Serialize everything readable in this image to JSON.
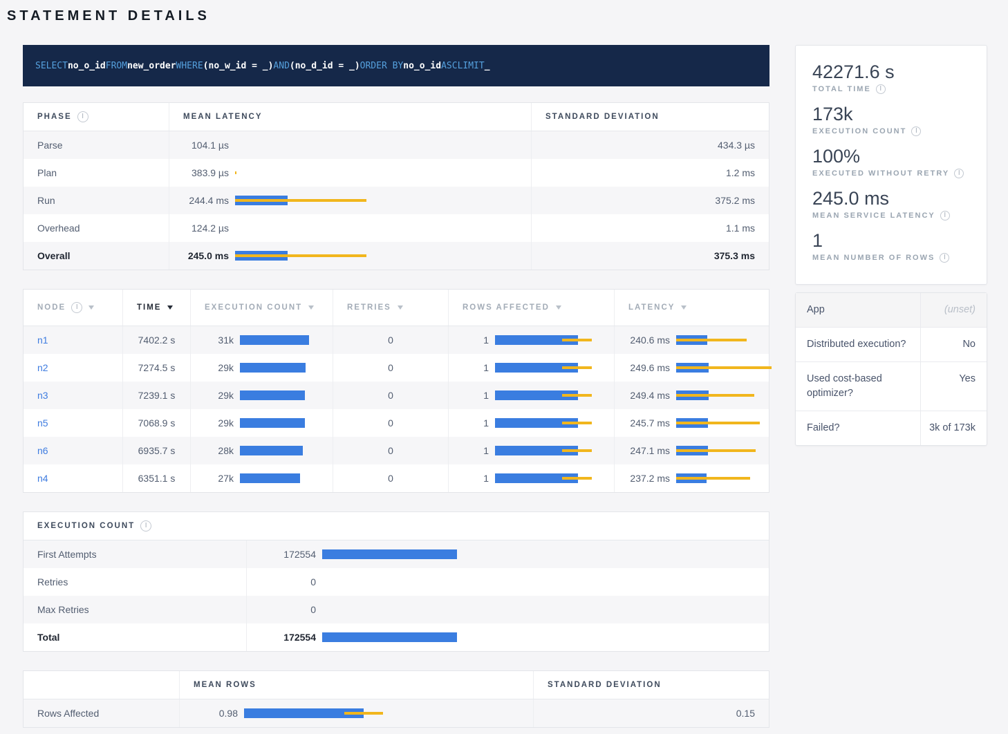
{
  "page_title": "STATEMENT DETAILS",
  "colors": {
    "bar_blue": "#3a7de0",
    "bar_yellow": "#f1b61d",
    "banner_bg": "#152849",
    "sql_keyword": "#55a0dd",
    "link": "#3e7ce0"
  },
  "sql_tokens": [
    {
      "text": "SELECT",
      "kw": true
    },
    {
      "text": "no_o_id",
      "kw": false
    },
    {
      "text": "FROM",
      "kw": true
    },
    {
      "text": "new_order",
      "kw": false
    },
    {
      "text": "WHERE",
      "kw": true
    },
    {
      "text": "(no_w_id = _)",
      "kw": false
    },
    {
      "text": "AND",
      "kw": true
    },
    {
      "text": "(no_d_id = _)",
      "kw": false
    },
    {
      "text": "ORDER BY",
      "kw": true
    },
    {
      "text": "no_o_id",
      "kw": false
    },
    {
      "text": "ASC",
      "kw": true
    },
    {
      "text": "LIMIT",
      "kw": true
    },
    {
      "text": "_",
      "kw": false
    }
  ],
  "phase_table": {
    "headers": {
      "phase": "Phase",
      "mean": "Mean Latency",
      "std": "Standard Deviation"
    },
    "rows": [
      {
        "phase": "Parse",
        "mean": "104.1 µs",
        "std": "434.3 µs",
        "bar": 0,
        "line": [
          0,
          0
        ],
        "bold": false
      },
      {
        "phase": "Plan",
        "mean": "383.9 µs",
        "std": "1.2 ms",
        "bar": 0,
        "line": [
          0,
          2
        ],
        "bold": false
      },
      {
        "phase": "Run",
        "mean": "244.4 ms",
        "std": "375.2 ms",
        "bar": 76,
        "line": [
          0,
          190
        ],
        "bold": false
      },
      {
        "phase": "Overhead",
        "mean": "124.2 µs",
        "std": "1.1 ms",
        "bar": 0,
        "line": [
          0,
          0
        ],
        "bold": false
      },
      {
        "phase": "Overall",
        "mean": "245.0 ms",
        "std": "375.3 ms",
        "bar": 76,
        "line": [
          0,
          190
        ],
        "bold": true
      }
    ]
  },
  "node_table": {
    "headers": [
      {
        "label": "Node",
        "info": true,
        "active": false
      },
      {
        "label": "Time",
        "info": false,
        "active": true
      },
      {
        "label": "Execution Count",
        "info": false,
        "active": false
      },
      {
        "label": "Retries",
        "info": false,
        "active": false
      },
      {
        "label": "Rows Affected",
        "info": false,
        "active": false
      },
      {
        "label": "Latency",
        "info": false,
        "active": false
      }
    ],
    "rows": [
      {
        "node": "n1",
        "time": "7402.2 s",
        "exec": "31k",
        "exec_bar": 100,
        "retries": "0",
        "rows": "1",
        "rows_bar": 120,
        "rows_line": [
          97,
          140
        ],
        "latency": "240.6 ms",
        "lat_bar": 45,
        "lat_line": [
          0,
          102
        ]
      },
      {
        "node": "n2",
        "time": "7274.5 s",
        "exec": "29k",
        "exec_bar": 95,
        "retries": "0",
        "rows": "1",
        "rows_bar": 120,
        "rows_line": [
          97,
          140
        ],
        "latency": "249.6 ms",
        "lat_bar": 47,
        "lat_line": [
          0,
          138
        ]
      },
      {
        "node": "n3",
        "time": "7239.1 s",
        "exec": "29k",
        "exec_bar": 94,
        "retries": "0",
        "rows": "1",
        "rows_bar": 120,
        "rows_line": [
          97,
          140
        ],
        "latency": "249.4 ms",
        "lat_bar": 47,
        "lat_line": [
          0,
          113
        ]
      },
      {
        "node": "n5",
        "time": "7068.9 s",
        "exec": "29k",
        "exec_bar": 94,
        "retries": "0",
        "rows": "1",
        "rows_bar": 120,
        "rows_line": [
          97,
          140
        ],
        "latency": "245.7 ms",
        "lat_bar": 46,
        "lat_line": [
          0,
          121
        ]
      },
      {
        "node": "n6",
        "time": "6935.7 s",
        "exec": "28k",
        "exec_bar": 91,
        "retries": "0",
        "rows": "1",
        "rows_bar": 120,
        "rows_line": [
          97,
          140
        ],
        "latency": "247.1 ms",
        "lat_bar": 46,
        "lat_line": [
          0,
          115
        ]
      },
      {
        "node": "n4",
        "time": "6351.1 s",
        "exec": "27k",
        "exec_bar": 87,
        "retries": "0",
        "rows": "1",
        "rows_bar": 120,
        "rows_line": [
          97,
          140
        ],
        "latency": "237.2 ms",
        "lat_bar": 44,
        "lat_line": [
          0,
          107
        ]
      }
    ]
  },
  "exec_table": {
    "title": "Execution Count",
    "rows": [
      {
        "label": "First Attempts",
        "value": "172554",
        "bar": 195,
        "bold": false
      },
      {
        "label": "Retries",
        "value": "0",
        "bar": 0,
        "bold": false
      },
      {
        "label": "Max Retries",
        "value": "0",
        "bar": 0,
        "bold": false
      },
      {
        "label": "Total",
        "value": "172554",
        "bar": 195,
        "bold": true
      }
    ]
  },
  "rows_table": {
    "headers": {
      "mean": "Mean Rows",
      "std": "Standard Deviation"
    },
    "row": {
      "label": "Rows Affected",
      "mean": "0.98",
      "std": "0.15",
      "bar": 173,
      "line": [
        145,
        201
      ]
    }
  },
  "summary": [
    {
      "value": "42271.6 s",
      "label": "Total Time"
    },
    {
      "value": "173k",
      "label": "Execution Count"
    },
    {
      "value": "100%",
      "label": "Executed without Retry"
    },
    {
      "value": "245.0 ms",
      "label": "Mean Service Latency"
    },
    {
      "value": "1",
      "label": "Mean Number of Rows"
    }
  ],
  "details": [
    {
      "label": "App",
      "value": "(unset)",
      "unset": true,
      "shaded": true
    },
    {
      "label": "Distributed execution?",
      "value": "No",
      "unset": false,
      "shaded": false
    },
    {
      "label": "Used cost-based optimizer?",
      "value": "Yes",
      "unset": false,
      "shaded": false
    },
    {
      "label": "Failed?",
      "value": "3k of 173k",
      "unset": false,
      "shaded": false
    }
  ]
}
